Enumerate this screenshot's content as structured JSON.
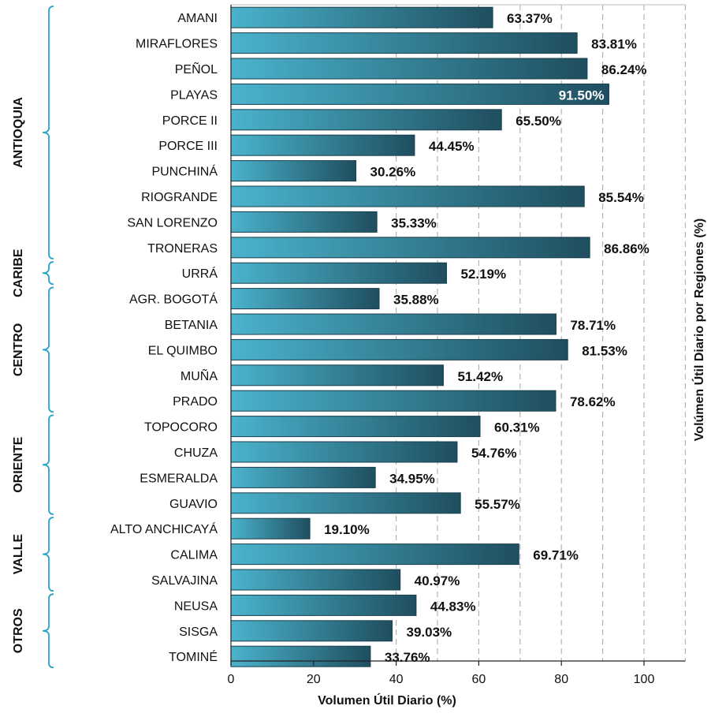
{
  "chart_data": {
    "type": "bar",
    "orientation": "horizontal",
    "xlabel": "Volumen Útil Diario (%)",
    "right_label": "Volúmen Útil Diario por Regiones (%)",
    "xlim": [
      0,
      110
    ],
    "xticks": [
      0,
      20,
      40,
      60,
      80,
      100
    ],
    "gridlines": [
      40,
      50,
      60,
      70,
      80,
      90,
      100,
      110
    ],
    "bar_color_start": "#4ab3cc",
    "bar_color_end": "#1f4e5f",
    "categories": [
      "AMANI",
      "MIRAFLORES",
      "PEÑOL",
      "PLAYAS",
      "PORCE II",
      "PORCE III",
      "PUNCHINÁ",
      "RIOGRANDE",
      "SAN LORENZO",
      "TRONERAS",
      "URRÁ",
      "AGR. BOGOTÁ",
      "BETANIA",
      "EL QUIMBO",
      "MUÑA",
      "PRADO",
      "TOPOCORO",
      "CHUZA",
      "ESMERALDA",
      "GUAVIO",
      "ALTO ANCHICAYÁ",
      "CALIMA",
      "SALVAJINA",
      "NEUSA",
      "SISGA",
      "TOMINÉ"
    ],
    "values": [
      63.37,
      83.81,
      86.24,
      91.5,
      65.5,
      44.45,
      30.26,
      85.54,
      35.33,
      86.86,
      52.19,
      35.88,
      78.71,
      81.53,
      51.42,
      78.62,
      60.31,
      54.76,
      34.95,
      55.57,
      19.1,
      69.71,
      40.97,
      44.83,
      39.03,
      33.76
    ],
    "value_labels": [
      "63.37%",
      "83.81%",
      "86.24%",
      "91.50%",
      "65.50%",
      "44.45%",
      "30.26%",
      "85.54%",
      "35.33%",
      "86.86%",
      "52.19%",
      "35.88%",
      "78.71%",
      "81.53%",
      "51.42%",
      "78.62%",
      "60.31%",
      "54.76%",
      "34.95%",
      "55.57%",
      "19.10%",
      "69.71%",
      "40.97%",
      "44.83%",
      "39.03%",
      "33.76%"
    ],
    "label_inside": [
      false,
      false,
      false,
      true,
      false,
      false,
      false,
      false,
      false,
      false,
      false,
      false,
      false,
      false,
      false,
      false,
      false,
      false,
      false,
      false,
      false,
      false,
      false,
      false,
      false,
      false
    ],
    "regions": [
      {
        "name": "ANTIOQUIA",
        "start": 0,
        "end": 9
      },
      {
        "name": "CARIBE",
        "start": 10,
        "end": 10
      },
      {
        "name": "CENTRO",
        "start": 11,
        "end": 15
      },
      {
        "name": "ORIENTE",
        "start": 16,
        "end": 19
      },
      {
        "name": "VALLE",
        "start": 20,
        "end": 22
      },
      {
        "name": "OTROS",
        "start": 23,
        "end": 25
      }
    ],
    "bracket_color": "#29a3c4"
  }
}
